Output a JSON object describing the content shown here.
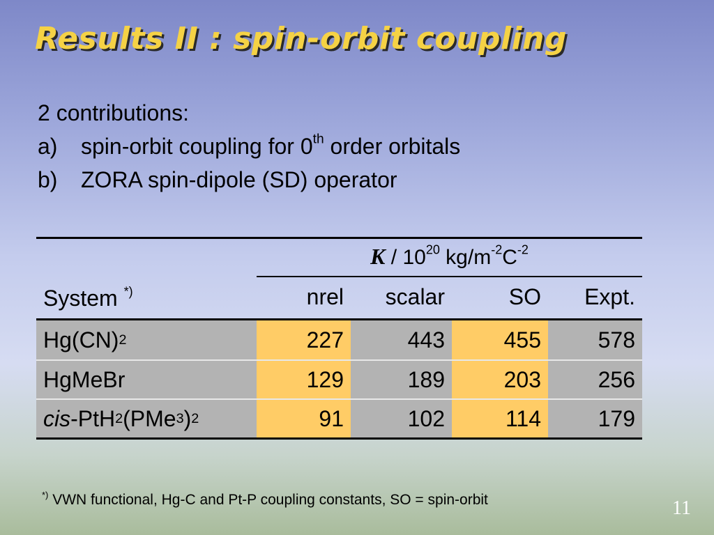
{
  "title": "Results II : spin-orbit coupling",
  "intro": {
    "heading": "2 contributions:",
    "items": [
      {
        "marker": "a)",
        "pre": "spin-orbit coupling for 0",
        "sup": "th",
        "post": " order orbitals"
      },
      {
        "marker": "b)",
        "text": "ZORA spin-dipole (SD) operator"
      }
    ]
  },
  "table": {
    "group_header": {
      "symbol": "K",
      "pre_unit": " / 10",
      "exp": "20",
      "unit_mid": " kg/m",
      "exp2": "-2",
      "unit_end": "C",
      "exp3": "-2"
    },
    "system_header": "System ",
    "system_header_mark": "*)",
    "columns": [
      "nrel",
      "scalar",
      "SO",
      "Expt."
    ],
    "rows": [
      {
        "sys_parts": [
          "Hg(CN)",
          "2"
        ],
        "values": [
          "227",
          "443",
          "455",
          "578"
        ]
      },
      {
        "sys": "HgMeBr",
        "values": [
          "129",
          "189",
          "203",
          "256"
        ]
      },
      {
        "sys_parts": [
          "cis",
          "-PtH",
          "2",
          "(PMe",
          "3",
          ")",
          "2"
        ],
        "values": [
          "91",
          "102",
          "114",
          "179"
        ]
      }
    ]
  },
  "footnote": {
    "mark": "*)",
    "text": " VWN functional, Hg-C and Pt-P coupling constants, SO = spin-orbit"
  },
  "slide_number": "11"
}
